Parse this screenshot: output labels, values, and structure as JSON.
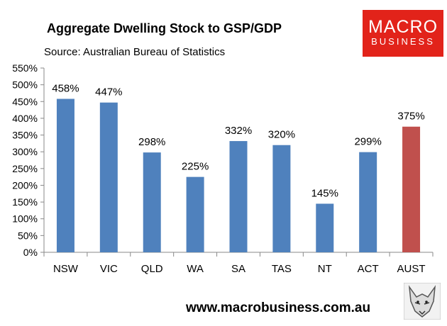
{
  "header": {
    "title": "Aggregate Dwelling Stock to GSP/GDP",
    "source": "Source: Australian Bureau of Statistics"
  },
  "logo": {
    "line1": "MACRO",
    "line2": "BUSINESS",
    "color": "#e2231a"
  },
  "footer": {
    "url": "www.macrobusiness.com.au",
    "mascot_icon": "wolf-icon"
  },
  "chart_data": {
    "type": "bar",
    "title": "Aggregate Dwelling Stock to GSP/GDP",
    "categories": [
      "NSW",
      "VIC",
      "QLD",
      "WA",
      "SA",
      "TAS",
      "NT",
      "ACT",
      "AUST"
    ],
    "values": [
      458,
      447,
      298,
      225,
      332,
      320,
      145,
      299,
      375
    ],
    "value_labels": [
      "458%",
      "447%",
      "298%",
      "225%",
      "332%",
      "320%",
      "145%",
      "299%",
      "375%"
    ],
    "unit": "%",
    "ylim": [
      0,
      550
    ],
    "yticks": [
      "0%",
      "50%",
      "100%",
      "150%",
      "200%",
      "250%",
      "300%",
      "350%",
      "400%",
      "450%",
      "500%",
      "550%"
    ],
    "bar_colors": [
      "#4f81bd",
      "#4f81bd",
      "#4f81bd",
      "#4f81bd",
      "#4f81bd",
      "#4f81bd",
      "#4f81bd",
      "#4f81bd",
      "#c0504d"
    ],
    "grid": false,
    "legend": false
  }
}
